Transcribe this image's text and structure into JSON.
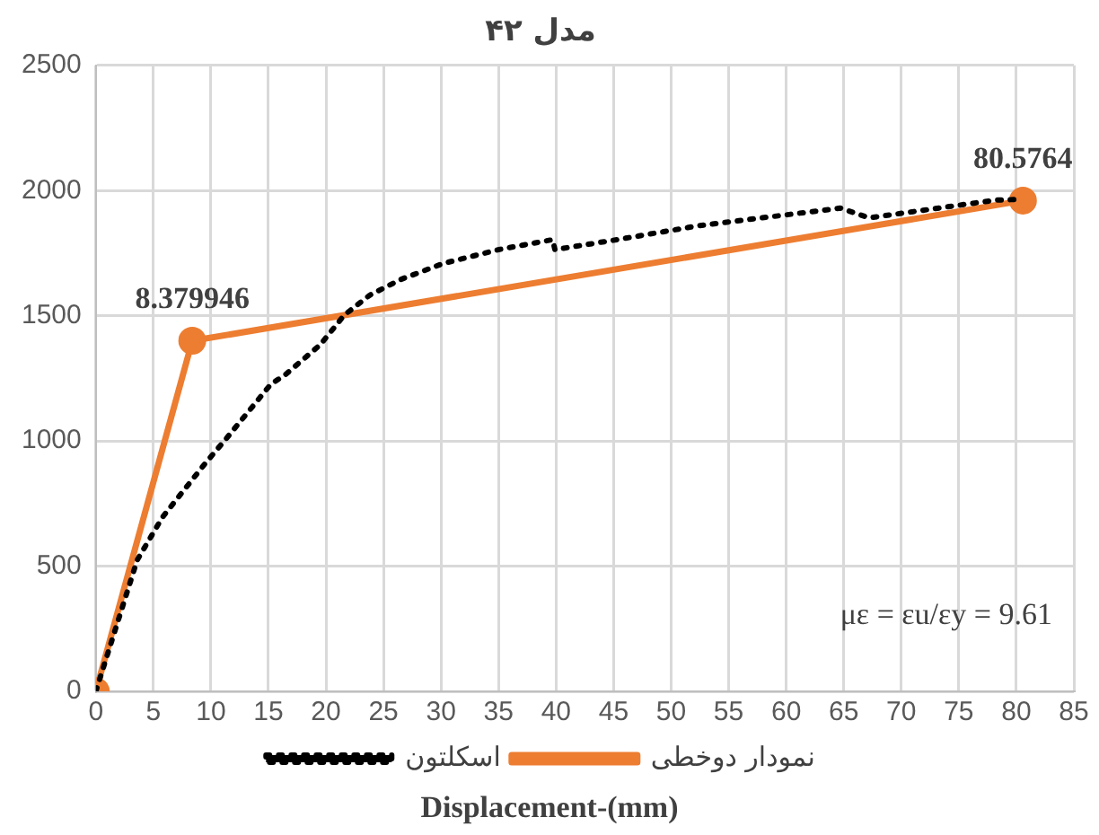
{
  "chart_data": {
    "type": "line",
    "title": "مدل ۴۲",
    "xlabel": "Displacement-(mm)",
    "xlim": [
      0,
      85
    ],
    "xticks": [
      0,
      5,
      10,
      15,
      20,
      25,
      30,
      35,
      40,
      45,
      50,
      55,
      60,
      65,
      70,
      75,
      80,
      85
    ],
    "ylim": [
      0,
      2500
    ],
    "yticks": [
      0,
      500,
      1000,
      1500,
      2000,
      2500
    ],
    "grid": true,
    "legend": "bottom",
    "series": [
      {
        "name": "اسکلتون",
        "color": "#000000",
        "line_style": "dotted",
        "marker": "none",
        "x": [
          0,
          3.6,
          5.8,
          9.5,
          11.4,
          15.2,
          16.5,
          19.5,
          21.6,
          23.8,
          26.5,
          30.2,
          35,
          39.7,
          39.9,
          45.3,
          52.3,
          64.7,
          67.2,
          78.2,
          80.5
        ],
        "values": [
          0,
          525,
          696,
          910,
          1013,
          1226,
          1266,
          1384,
          1503,
          1582,
          1645,
          1709,
          1764,
          1804,
          1764,
          1804,
          1859,
          1930,
          1891,
          1962,
          1965
        ]
      },
      {
        "name": "نمودار دوخطی",
        "color": "#ed7d31",
        "line_style": "solid",
        "marker": "circle",
        "x": [
          0,
          8.379946,
          80.5764
        ],
        "values": [
          0,
          1400,
          1960
        ]
      }
    ],
    "annotations": [
      {
        "text": "8.379946",
        "x": 8.379946,
        "y": 1400
      },
      {
        "text": "80.5764",
        "x": 80.5764,
        "y": 1960
      },
      "με = εu/εy = 9.61"
    ]
  }
}
